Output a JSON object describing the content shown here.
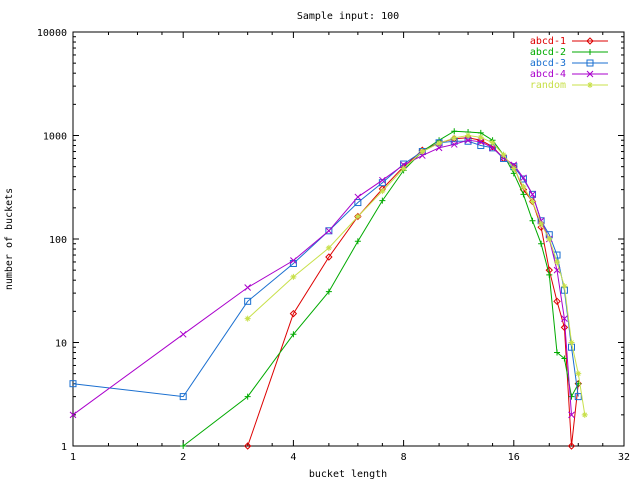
{
  "chart_data": {
    "type": "line",
    "title": "Sample input: 100",
    "xlabel": "bucket length",
    "ylabel": "number of buckets",
    "x_scale": "log2",
    "y_scale": "log10",
    "xlim": [
      1,
      32
    ],
    "ylim": [
      1,
      10000
    ],
    "x_ticks": [
      1,
      2,
      4,
      8,
      16,
      32
    ],
    "y_ticks": [
      1,
      10,
      100,
      1000,
      10000
    ],
    "grid": false,
    "legend_position": "top-right",
    "series": [
      {
        "name": "abcd-1",
        "color": "#dd0000",
        "marker": "diamond",
        "x": [
          3,
          4,
          5,
          6,
          7,
          8,
          9,
          10,
          11,
          12,
          13,
          14,
          15,
          16,
          17,
          18,
          19,
          20,
          21,
          22,
          23,
          24
        ],
        "y": [
          1,
          19,
          67,
          165,
          305,
          500,
          720,
          850,
          930,
          950,
          900,
          780,
          600,
          500,
          300,
          230,
          130,
          50,
          25,
          14,
          1,
          4
        ]
      },
      {
        "name": "abcd-2",
        "color": "#00aa00",
        "marker": "plus",
        "x": [
          2,
          3,
          4,
          5,
          6,
          7,
          8,
          9,
          10,
          11,
          12,
          13,
          14,
          15,
          16,
          17,
          18,
          19,
          20,
          21,
          22,
          23,
          24
        ],
        "y": [
          1,
          3,
          12,
          31,
          95,
          235,
          460,
          700,
          900,
          1100,
          1080,
          1060,
          900,
          650,
          430,
          270,
          150,
          90,
          45,
          8,
          7,
          3,
          4
        ]
      },
      {
        "name": "abcd-3",
        "color": "#1a6fd0",
        "marker": "square",
        "x": [
          1,
          2,
          3,
          4,
          5,
          6,
          7,
          8,
          9,
          10,
          11,
          12,
          13,
          14,
          15,
          16,
          17,
          18,
          19,
          20,
          21,
          22,
          23,
          24
        ],
        "y": [
          4,
          3,
          25,
          58,
          120,
          225,
          350,
          530,
          700,
          850,
          880,
          880,
          800,
          760,
          600,
          500,
          380,
          270,
          150,
          110,
          70,
          32,
          9,
          3
        ]
      },
      {
        "name": "abcd-4",
        "color": "#aa00cc",
        "marker": "cross",
        "x": [
          1,
          2,
          3,
          4,
          5,
          6,
          7,
          8,
          9,
          10,
          11,
          12,
          13,
          14,
          15,
          16,
          17,
          18,
          19,
          20,
          21,
          22,
          23
        ],
        "y": [
          2,
          12,
          34,
          62,
          120,
          255,
          370,
          520,
          640,
          760,
          820,
          900,
          870,
          760,
          610,
          520,
          390,
          270,
          150,
          100,
          50,
          17,
          2
        ]
      },
      {
        "name": "random",
        "color": "#c8e04a",
        "marker": "star",
        "x": [
          3,
          4,
          5,
          6,
          7,
          8,
          9,
          10,
          11,
          12,
          13,
          14,
          15,
          16,
          17,
          18,
          19,
          20,
          21,
          22,
          23,
          24,
          25
        ],
        "y": [
          17,
          43,
          82,
          165,
          290,
          480,
          700,
          840,
          950,
          1000,
          960,
          850,
          650,
          480,
          320,
          230,
          140,
          100,
          60,
          35,
          10,
          5,
          2
        ]
      }
    ]
  }
}
